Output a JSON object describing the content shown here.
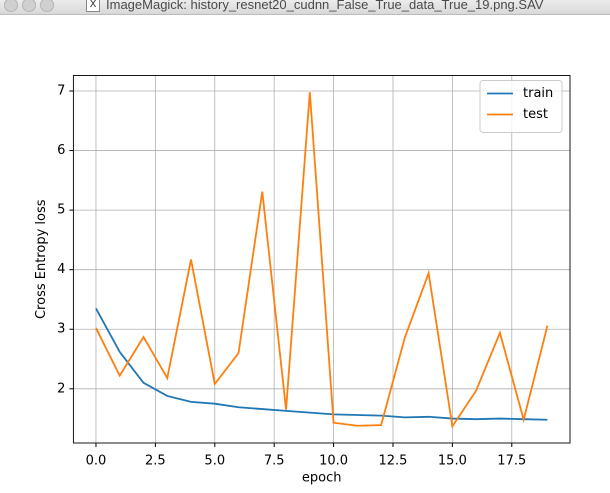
{
  "window": {
    "title": "ImageMagick: history_resnet20_cudnn_False_True_data_True_19.png.SAV"
  },
  "chart_data": {
    "type": "line",
    "x_label": "epoch",
    "y_label": "Cross Entropy loss",
    "x": [
      0,
      1,
      2,
      3,
      4,
      5,
      6,
      7,
      8,
      9,
      10,
      11,
      12,
      13,
      14,
      15,
      16,
      17,
      18,
      19
    ],
    "series": [
      {
        "name": "train",
        "color": "#1f77b4",
        "values": [
          3.35,
          2.62,
          2.1,
          1.88,
          1.78,
          1.75,
          1.69,
          1.66,
          1.63,
          1.6,
          1.57,
          1.56,
          1.55,
          1.52,
          1.53,
          1.5,
          1.49,
          1.5,
          1.49,
          1.48
        ]
      },
      {
        "name": "test",
        "color": "#ff7f0e",
        "values": [
          3.02,
          2.22,
          2.87,
          2.18,
          4.17,
          2.08,
          2.6,
          5.31,
          1.65,
          6.98,
          1.43,
          1.38,
          1.39,
          2.86,
          3.94,
          1.37,
          1.97,
          2.94,
          1.48,
          3.06
        ]
      }
    ],
    "xlim": [
      -0.95,
      19.95
    ],
    "ylim": [
      1.09,
      7.26
    ],
    "xticks": [
      {
        "value": 0,
        "label": "0.0"
      },
      {
        "value": 2.5,
        "label": "2.5"
      },
      {
        "value": 5,
        "label": "5.0"
      },
      {
        "value": 7.5,
        "label": "7.5"
      },
      {
        "value": 10,
        "label": "10.0"
      },
      {
        "value": 12.5,
        "label": "12.5"
      },
      {
        "value": 15,
        "label": "15.0"
      },
      {
        "value": 17.5,
        "label": "17.5"
      }
    ],
    "yticks": [
      2,
      3,
      4,
      5,
      6,
      7
    ],
    "grid": true,
    "legend": "upper-right"
  }
}
